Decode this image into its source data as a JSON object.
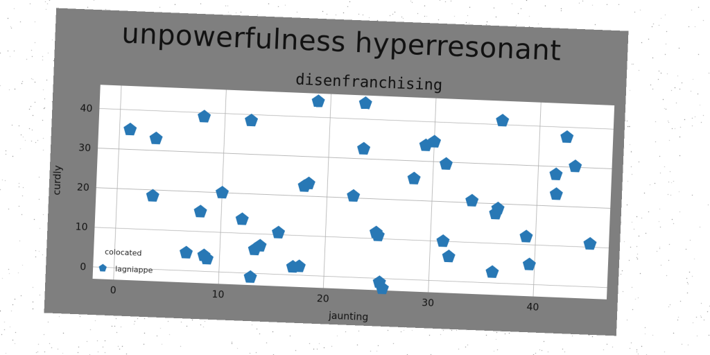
{
  "chart_data": {
    "type": "scatter",
    "title": "unpowerfulness hyperresonant",
    "subtitle": "disenfranchising",
    "xlabel": "jaunting",
    "ylabel": "curdly",
    "xlim": [
      -2,
      47
    ],
    "ylim": [
      -3,
      46
    ],
    "xticks": [
      0,
      10,
      20,
      30,
      40
    ],
    "yticks": [
      0,
      10,
      20,
      30,
      40
    ],
    "grid": true,
    "legend": {
      "title": "colocated",
      "position": "lower-left"
    },
    "marker": "pentagon",
    "color": "#2878b5",
    "series": [
      {
        "name": "lagniappe",
        "points": [
          [
            1,
            35
          ],
          [
            3.5,
            33
          ],
          [
            3.4,
            18.5
          ],
          [
            6.8,
            4.5
          ],
          [
            8.5,
            4
          ],
          [
            8.8,
            3.2
          ],
          [
            8,
            39
          ],
          [
            8,
            15
          ],
          [
            10,
            20
          ],
          [
            12,
            13.5
          ],
          [
            12.5,
            38.5
          ],
          [
            13,
            -1
          ],
          [
            13.3,
            6
          ],
          [
            13.8,
            7
          ],
          [
            15.5,
            10.5
          ],
          [
            17,
            2
          ],
          [
            17.6,
            2.2
          ],
          [
            17.8,
            22.5
          ],
          [
            18.2,
            23.2
          ],
          [
            18.8,
            44
          ],
          [
            22.5,
            20.5
          ],
          [
            23.3,
            44
          ],
          [
            23.3,
            32.5
          ],
          [
            24.8,
            11.5
          ],
          [
            25,
            10.8
          ],
          [
            25.3,
            -1
          ],
          [
            25.6,
            -2.5
          ],
          [
            28.2,
            25.5
          ],
          [
            29.2,
            34
          ],
          [
            30,
            35
          ],
          [
            31.2,
            10
          ],
          [
            31.2,
            29.5
          ],
          [
            31.8,
            6.2
          ],
          [
            33.8,
            20.5
          ],
          [
            36,
            2.7
          ],
          [
            36.1,
            17.5
          ],
          [
            36.3,
            18.8
          ],
          [
            36.4,
            41
          ],
          [
            39.1,
            12
          ],
          [
            39.5,
            5
          ],
          [
            41.7,
            28
          ],
          [
            41.8,
            23
          ],
          [
            42.6,
            37.5
          ],
          [
            43.5,
            30.2
          ],
          [
            45.2,
            10.8
          ]
        ]
      }
    ]
  }
}
